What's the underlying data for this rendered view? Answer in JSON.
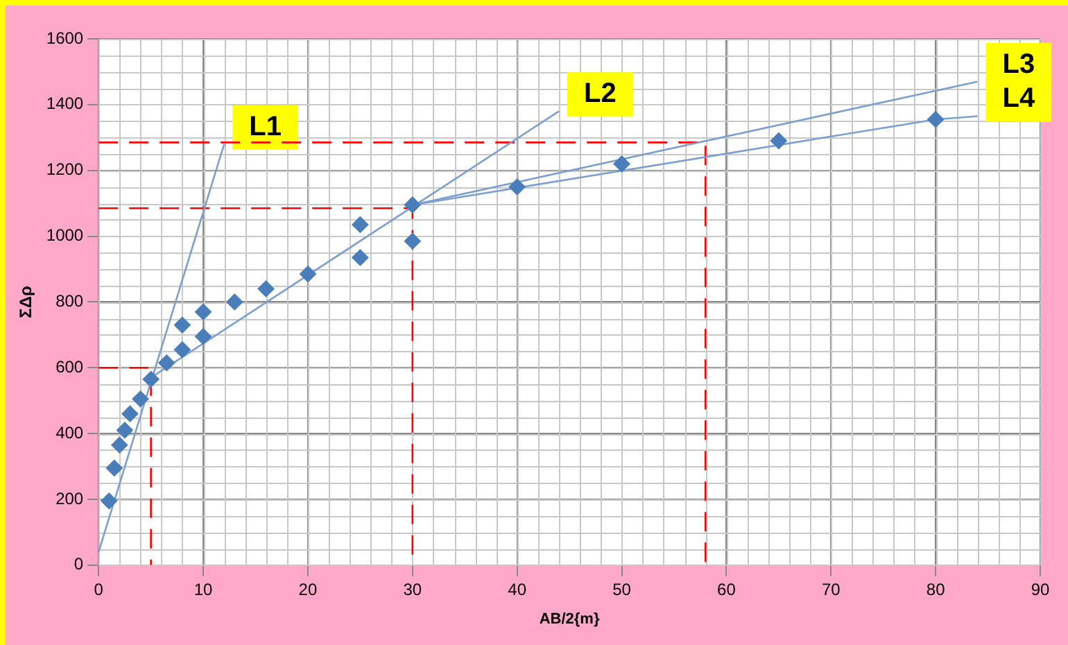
{
  "chart_data": {
    "type": "scatter",
    "xlabel": "AB/2{m}",
    "ylabel": "ΣΔρ",
    "xlim": [
      0,
      90
    ],
    "xticks": [
      0,
      10,
      20,
      30,
      40,
      50,
      60,
      70,
      80,
      90
    ],
    "ylim": [
      0,
      1600
    ],
    "yticks": [
      0,
      200,
      400,
      600,
      800,
      1000,
      1200,
      1400,
      1600
    ],
    "grid": true,
    "legend": false,
    "series": [
      {
        "type": "scatter",
        "color": "#4a7ebb",
        "marker": "diamond",
        "x": [
          1,
          1.5,
          2,
          2.5,
          3,
          4,
          5,
          6.5,
          8,
          8,
          10,
          10,
          13,
          16,
          20,
          25,
          25,
          30,
          30,
          40,
          50,
          65,
          80
        ],
        "values": [
          195,
          295,
          365,
          410,
          460,
          505,
          565,
          615,
          655,
          730,
          770,
          695,
          800,
          840,
          885,
          1035,
          935,
          1095,
          985,
          1150,
          1220,
          1290,
          1355
        ]
      },
      {
        "type": "line",
        "color": "#7ba0d0",
        "marker": "none",
        "x": [
          0,
          12
        ],
        "values": [
          40,
          1280
        ]
      },
      {
        "type": "line",
        "color": "#7ba0d0",
        "marker": "none",
        "x": [
          5,
          44
        ],
        "values": [
          570,
          1380
        ]
      },
      {
        "type": "line",
        "color": "#7ba0d0",
        "marker": "none",
        "x": [
          30,
          84
        ],
        "values": [
          1095,
          1470
        ]
      },
      {
        "type": "line",
        "color": "#7ba0d0",
        "marker": "none",
        "x": [
          30,
          80,
          84
        ],
        "values": [
          1095,
          1355,
          1365
        ]
      },
      {
        "type": "line",
        "color": "#ff0000",
        "marker": "none",
        "line_style": "dashed",
        "x": [
          0,
          5,
          5
        ],
        "values": [
          600,
          600,
          0
        ]
      },
      {
        "type": "line",
        "color": "#ff0000",
        "marker": "none",
        "line_style": "dashed",
        "x": [
          0,
          30,
          30
        ],
        "values": [
          1085,
          1085,
          0
        ]
      },
      {
        "type": "line",
        "color": "#ff0000",
        "marker": "none",
        "line_style": "dashed",
        "x": [
          0,
          58,
          58
        ],
        "values": [
          1285,
          1285,
          0
        ]
      }
    ],
    "annotations": [
      {
        "text": "L1",
        "x": 12,
        "y": 1280
      },
      {
        "text": "L2",
        "x": 44,
        "y": 1380
      },
      {
        "text": "L3",
        "x": 84,
        "y": 1470
      },
      {
        "text": "L4",
        "x": 84,
        "y": 1365
      }
    ]
  }
}
